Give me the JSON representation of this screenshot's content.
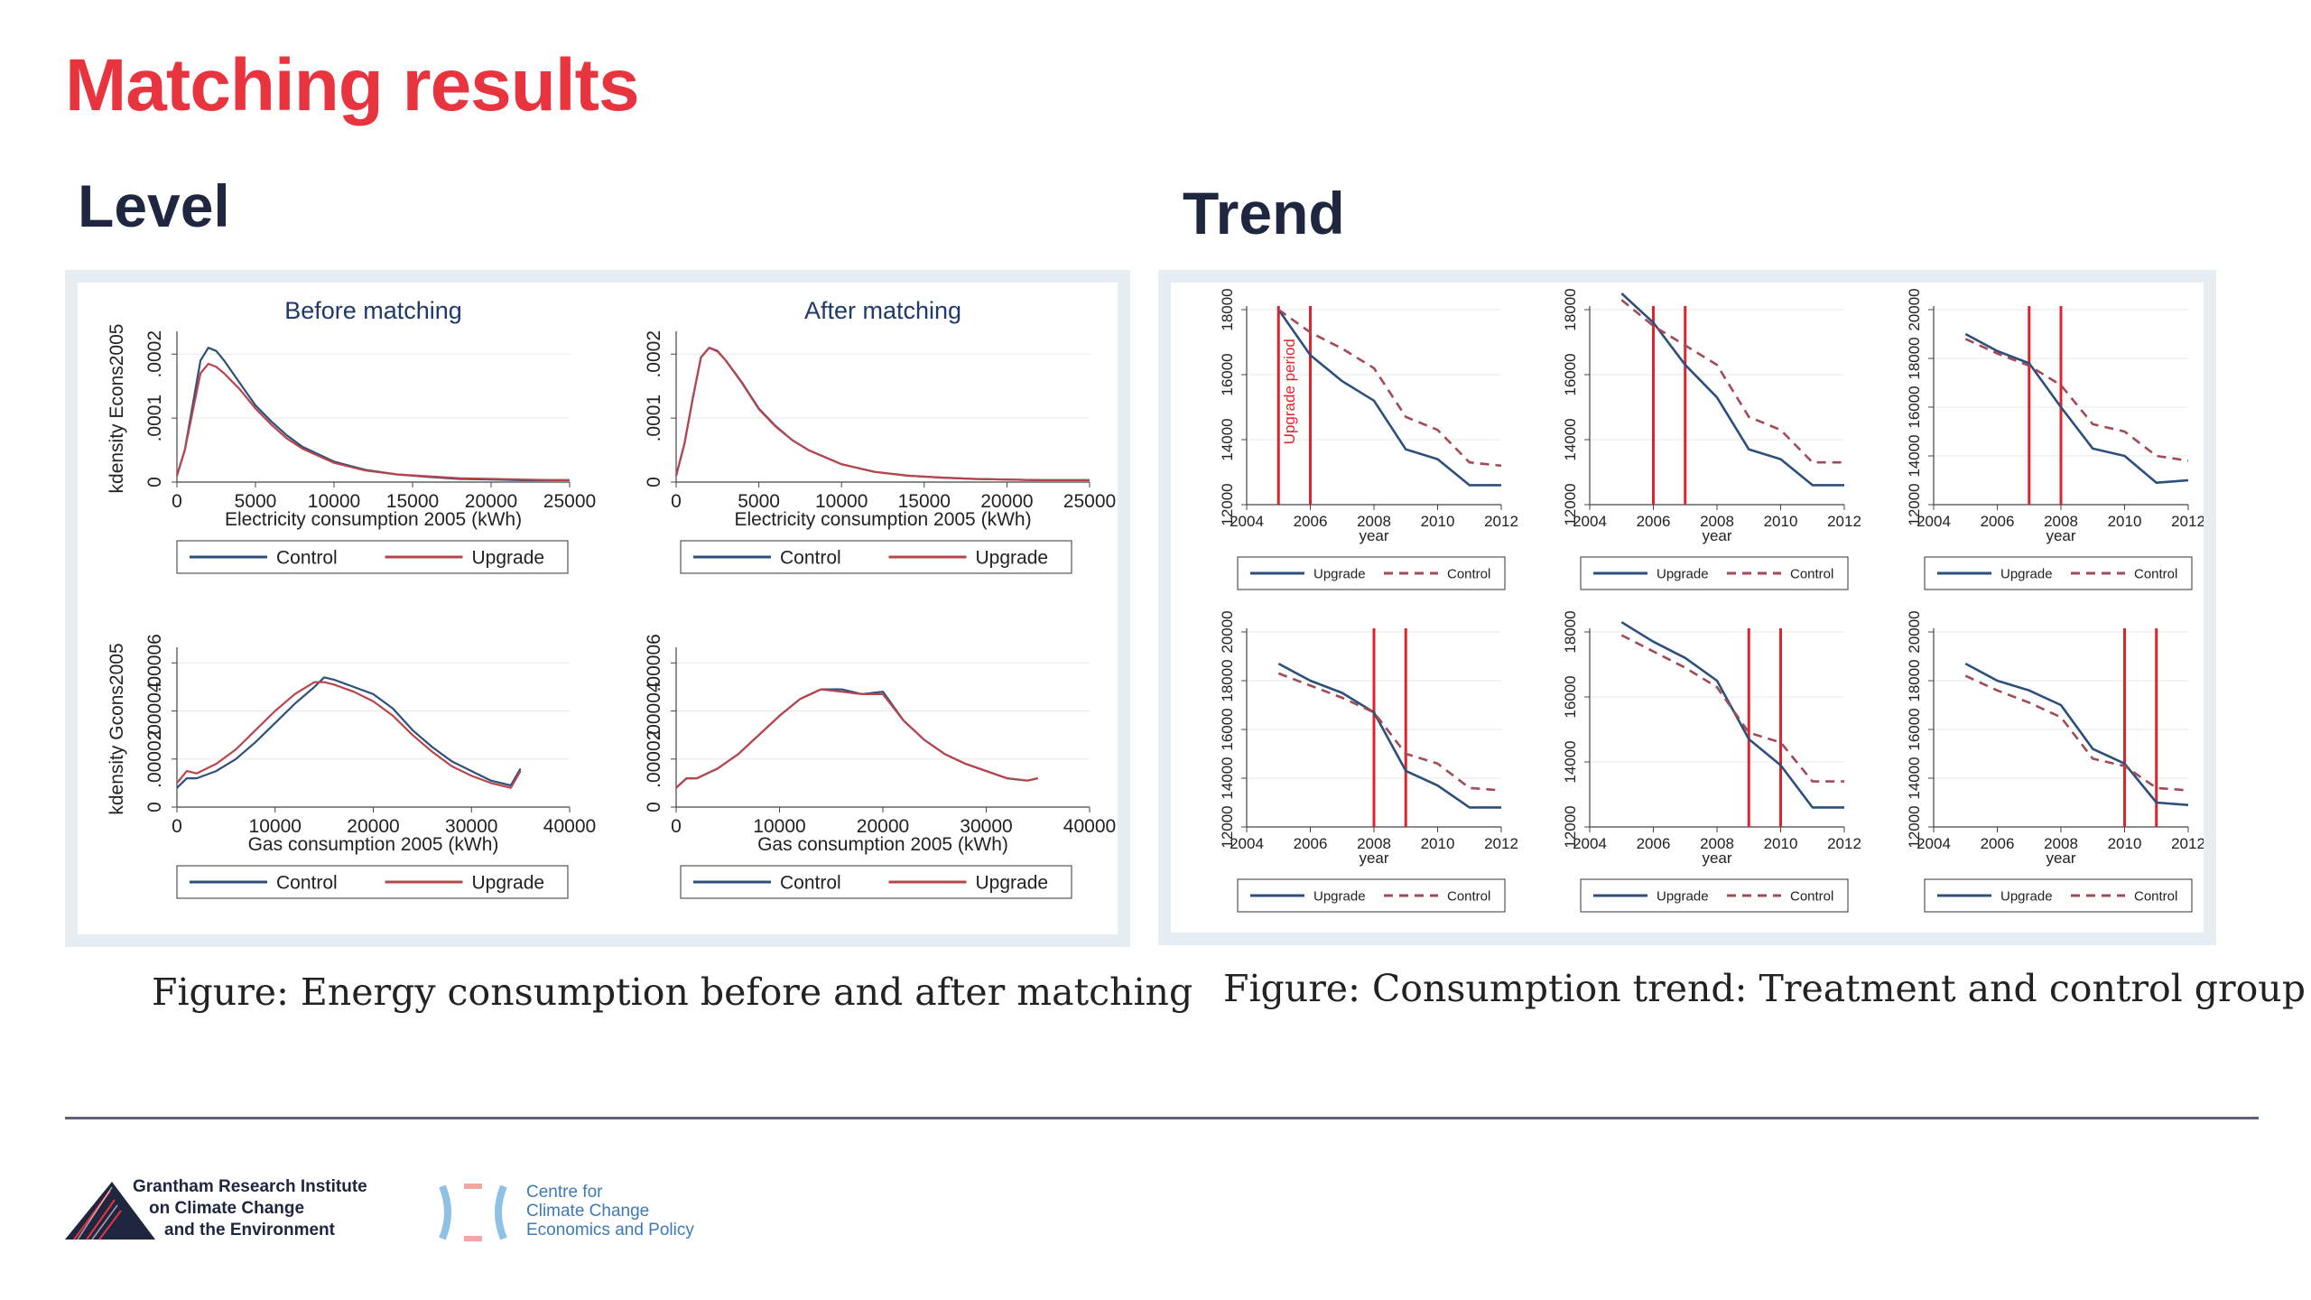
{
  "slide": {
    "title": "Matching results",
    "level_heading": "Level",
    "trend_heading": "Trend",
    "level_caption": "Figure: Energy consumption before and after matching",
    "trend_caption": "Figure: Consumption trend: Treatment and control group"
  },
  "logos": {
    "grantham": [
      "Grantham Research Institute",
      "on Climate Change",
      "and the Environment"
    ],
    "cccep": [
      "Centre for",
      "Climate Change",
      "Economics and Policy"
    ]
  },
  "colors": {
    "title_red": "#e8343f",
    "upgrade_line": "#b8454c",
    "control_line": "#2c4f7c",
    "upgrade_period_line": "#e0232b",
    "trend_control_dash": "#a24a55"
  },
  "chart_data": [
    {
      "id": "level_elec_before",
      "type": "line",
      "title": "Before matching",
      "xlabel": "Electricity consumption 2005 (kWh)",
      "ylabel": "kdensity Econs2005",
      "xticks": [
        "0",
        "5000",
        "10000",
        "15000",
        "20000",
        "25000"
      ],
      "yticks": [
        "0",
        ".0001",
        ".0002"
      ],
      "xlim": [
        0,
        25000
      ],
      "ylim": [
        0,
        0.00023
      ],
      "legend": [
        "Control",
        "Upgrade"
      ],
      "series": [
        {
          "name": "Control",
          "x": [
            0,
            500,
            1000,
            1500,
            2000,
            2500,
            3000,
            4000,
            5000,
            6000,
            7000,
            8000,
            10000,
            12000,
            14000,
            16000,
            18000,
            20000,
            22000,
            24000,
            25000
          ],
          "y": [
            1e-05,
            5e-05,
            0.00012,
            0.00019,
            0.00021,
            0.000205,
            0.00019,
            0.000155,
            0.00012,
            9.5e-05,
            7.3e-05,
            5.5e-05,
            3.2e-05,
            1.9e-05,
            1.2e-05,
            8e-06,
            5e-06,
            4e-06,
            3e-06,
            3e-06,
            3e-06
          ]
        },
        {
          "name": "Upgrade",
          "x": [
            0,
            500,
            1000,
            1500,
            2000,
            2500,
            3000,
            4000,
            5000,
            6000,
            7000,
            8000,
            10000,
            12000,
            14000,
            16000,
            18000,
            20000,
            22000,
            24000,
            25000
          ],
          "y": [
            1e-05,
            5e-05,
            0.00011,
            0.00017,
            0.000185,
            0.00018,
            0.00017,
            0.000145,
            0.000115,
            9e-05,
            6.8e-05,
            5.2e-05,
            3e-05,
            1.8e-05,
            1.2e-05,
            9e-06,
            6e-06,
            5e-06,
            4e-06,
            3e-06,
            3e-06
          ]
        }
      ]
    },
    {
      "id": "level_elec_after",
      "type": "line",
      "title": "After matching",
      "xlabel": "Electricity consumption 2005 (kWh)",
      "ylabel": "",
      "xticks": [
        "0",
        "5000",
        "10000",
        "15000",
        "20000",
        "25000"
      ],
      "yticks": [
        "0",
        ".0001",
        ".0002"
      ],
      "xlim": [
        0,
        25000
      ],
      "ylim": [
        0,
        0.00023
      ],
      "legend": [
        "Control",
        "Upgrade"
      ],
      "series": [
        {
          "name": "Control",
          "x": [
            0,
            500,
            1000,
            1500,
            2000,
            2500,
            3000,
            4000,
            5000,
            6000,
            7000,
            8000,
            10000,
            12000,
            14000,
            16000,
            18000,
            20000,
            22000,
            24000,
            25000
          ],
          "y": [
            1e-05,
            6e-05,
            0.00013,
            0.000195,
            0.00021,
            0.000205,
            0.00019,
            0.000155,
            0.000115,
            8.8e-05,
            6.6e-05,
            5e-05,
            2.8e-05,
            1.6e-05,
            1e-05,
            7e-06,
            5e-06,
            4e-06,
            3e-06,
            3e-06,
            3e-06
          ]
        },
        {
          "name": "Upgrade",
          "x": [
            0,
            500,
            1000,
            1500,
            2000,
            2500,
            3000,
            4000,
            5000,
            6000,
            7000,
            8000,
            10000,
            12000,
            14000,
            16000,
            18000,
            20000,
            22000,
            24000,
            25000
          ],
          "y": [
            1e-05,
            6e-05,
            0.00013,
            0.000195,
            0.00021,
            0.000204,
            0.00019,
            0.000154,
            0.000114,
            8.7e-05,
            6.6e-05,
            5e-05,
            2.8e-05,
            1.6e-05,
            1e-05,
            7e-06,
            5e-06,
            4e-06,
            3e-06,
            3e-06,
            3e-06
          ]
        }
      ]
    },
    {
      "id": "level_gas_before",
      "type": "line",
      "title": "",
      "xlabel": "Gas consumption 2005 (kWh)",
      "ylabel": "kdensity Gcons2005",
      "xticks": [
        "0",
        "10000",
        "20000",
        "30000",
        "40000"
      ],
      "yticks": [
        "0",
        ".00002",
        ".00004",
        ".00006"
      ],
      "xlim": [
        0,
        40000
      ],
      "ylim": [
        0,
        6.5e-05
      ],
      "legend": [
        "Control",
        "Upgrade"
      ],
      "series": [
        {
          "name": "Control",
          "x": [
            0,
            1000,
            2000,
            4000,
            6000,
            8000,
            10000,
            12000,
            14000,
            15000,
            16000,
            18000,
            20000,
            22000,
            24000,
            26000,
            28000,
            30000,
            32000,
            34000,
            35000
          ],
          "y": [
            8e-06,
            1.2e-05,
            1.2e-05,
            1.5e-05,
            2e-05,
            2.7e-05,
            3.5e-05,
            4.3e-05,
            5e-05,
            5.4e-05,
            5.3e-05,
            5e-05,
            4.7e-05,
            4.1e-05,
            3.2e-05,
            2.5e-05,
            1.9e-05,
            1.5e-05,
            1.1e-05,
            9e-06,
            1.6e-05
          ]
        },
        {
          "name": "Upgrade",
          "x": [
            0,
            1000,
            2000,
            4000,
            6000,
            8000,
            10000,
            12000,
            14000,
            15000,
            16000,
            18000,
            20000,
            22000,
            24000,
            26000,
            28000,
            30000,
            32000,
            34000,
            35000
          ],
          "y": [
            1e-05,
            1.5e-05,
            1.4e-05,
            1.8e-05,
            2.4e-05,
            3.2e-05,
            4e-05,
            4.7e-05,
            5.2e-05,
            5.2e-05,
            5.1e-05,
            4.8e-05,
            4.4e-05,
            3.8e-05,
            3e-05,
            2.3e-05,
            1.7e-05,
            1.3e-05,
            1e-05,
            8e-06,
            1.5e-05
          ]
        }
      ]
    },
    {
      "id": "level_gas_after",
      "type": "line",
      "title": "",
      "xlabel": "Gas consumption 2005 (kWh)",
      "ylabel": "",
      "xticks": [
        "0",
        "10000",
        "20000",
        "30000",
        "40000"
      ],
      "yticks": [
        "0",
        ".00002",
        ".00004",
        ".00006"
      ],
      "xlim": [
        0,
        40000
      ],
      "ylim": [
        0,
        6.5e-05
      ],
      "legend": [
        "Control",
        "Upgrade"
      ],
      "series": [
        {
          "name": "Control",
          "x": [
            0,
            1000,
            2000,
            4000,
            6000,
            8000,
            10000,
            12000,
            14000,
            16000,
            18000,
            20000,
            22000,
            24000,
            26000,
            28000,
            30000,
            32000,
            34000,
            35000
          ],
          "y": [
            8e-06,
            1.2e-05,
            1.2e-05,
            1.6e-05,
            2.2e-05,
            3e-05,
            3.8e-05,
            4.5e-05,
            4.9e-05,
            4.9e-05,
            4.7e-05,
            4.8e-05,
            3.6e-05,
            2.8e-05,
            2.2e-05,
            1.8e-05,
            1.5e-05,
            1.2e-05,
            1.1e-05,
            1.2e-05
          ]
        },
        {
          "name": "Upgrade",
          "x": [
            0,
            1000,
            2000,
            4000,
            6000,
            8000,
            10000,
            12000,
            14000,
            16000,
            18000,
            20000,
            22000,
            24000,
            26000,
            28000,
            30000,
            32000,
            34000,
            35000
          ],
          "y": [
            8e-06,
            1.2e-05,
            1.2e-05,
            1.6e-05,
            2.2e-05,
            3e-05,
            3.8e-05,
            4.5e-05,
            4.9e-05,
            4.8e-05,
            4.7e-05,
            4.7e-05,
            3.6e-05,
            2.8e-05,
            2.2e-05,
            1.8e-05,
            1.5e-05,
            1.2e-05,
            1.1e-05,
            1.2e-05
          ]
        }
      ]
    },
    {
      "id": "trend_1",
      "type": "line",
      "xlabel": "year",
      "xticks": [
        "2004",
        "2006",
        "2008",
        "2010",
        "2012"
      ],
      "xlim": [
        2004,
        2012
      ],
      "yticks": [
        "12000",
        "14000",
        "16000",
        "18000"
      ],
      "ylim": [
        12000,
        18000
      ],
      "legend": [
        "Upgrade",
        "Control"
      ],
      "upgrade_period": [
        2005,
        2006
      ],
      "annotation": "Upgrade period",
      "series": [
        {
          "name": "Upgrade",
          "x": [
            2005,
            2006,
            2007,
            2008,
            2009,
            2010,
            2011,
            2012
          ],
          "y": [
            18000,
            16600,
            15800,
            15200,
            13700,
            13400,
            12600,
            12600
          ]
        },
        {
          "name": "Control",
          "x": [
            2005,
            2006,
            2007,
            2008,
            2009,
            2010,
            2011,
            2012
          ],
          "y": [
            18000,
            17300,
            16800,
            16200,
            14700,
            14300,
            13300,
            13200
          ]
        }
      ]
    },
    {
      "id": "trend_2",
      "type": "line",
      "xlabel": "year",
      "xticks": [
        "2004",
        "2006",
        "2008",
        "2010",
        "2012"
      ],
      "xlim": [
        2004,
        2012
      ],
      "yticks": [
        "12000",
        "14000",
        "16000",
        "18000"
      ],
      "ylim": [
        12000,
        18000
      ],
      "legend": [
        "Upgrade",
        "Control"
      ],
      "upgrade_period": [
        2006,
        2007
      ],
      "series": [
        {
          "name": "Upgrade",
          "x": [
            2005,
            2006,
            2007,
            2008,
            2009,
            2010,
            2011,
            2012
          ],
          "y": [
            18500,
            17600,
            16300,
            15300,
            13700,
            13400,
            12600,
            12600
          ]
        },
        {
          "name": "Control",
          "x": [
            2005,
            2006,
            2007,
            2008,
            2009,
            2010,
            2011,
            2012
          ],
          "y": [
            18300,
            17500,
            16900,
            16300,
            14700,
            14300,
            13300,
            13300
          ]
        }
      ]
    },
    {
      "id": "trend_3",
      "type": "line",
      "xlabel": "year",
      "xticks": [
        "2004",
        "2006",
        "2008",
        "2010",
        "2012"
      ],
      "xlim": [
        2004,
        2012
      ],
      "yticks": [
        "12000",
        "14000",
        "16000",
        "18000",
        "20000"
      ],
      "ylim": [
        12000,
        20000
      ],
      "legend": [
        "Upgrade",
        "Control"
      ],
      "upgrade_period": [
        2007,
        2008
      ],
      "series": [
        {
          "name": "Upgrade",
          "x": [
            2005,
            2006,
            2007,
            2008,
            2009,
            2010,
            2011,
            2012
          ],
          "y": [
            19000,
            18300,
            17800,
            16000,
            14300,
            14000,
            12900,
            13000
          ]
        },
        {
          "name": "Control",
          "x": [
            2005,
            2006,
            2007,
            2008,
            2009,
            2010,
            2011,
            2012
          ],
          "y": [
            18800,
            18200,
            17700,
            16900,
            15300,
            15000,
            14000,
            13800
          ]
        }
      ]
    },
    {
      "id": "trend_4",
      "type": "line",
      "xlabel": "year",
      "xticks": [
        "2004",
        "2006",
        "2008",
        "2010",
        "2012"
      ],
      "xlim": [
        2004,
        2012
      ],
      "yticks": [
        "12000",
        "14000",
        "16000",
        "18000",
        "20000"
      ],
      "ylim": [
        12000,
        20000
      ],
      "legend": [
        "Upgrade",
        "Control"
      ],
      "upgrade_period": [
        2008,
        2009
      ],
      "series": [
        {
          "name": "Upgrade",
          "x": [
            2005,
            2006,
            2007,
            2008,
            2009,
            2010,
            2011,
            2012
          ],
          "y": [
            18700,
            18000,
            17500,
            16700,
            14300,
            13700,
            12800,
            12800
          ]
        },
        {
          "name": "Control",
          "x": [
            2005,
            2006,
            2007,
            2008,
            2009,
            2010,
            2011,
            2012
          ],
          "y": [
            18300,
            17800,
            17300,
            16700,
            15000,
            14600,
            13600,
            13500
          ]
        }
      ]
    },
    {
      "id": "trend_5",
      "type": "line",
      "xlabel": "year",
      "xticks": [
        "2004",
        "2006",
        "2008",
        "2010",
        "2012"
      ],
      "xlim": [
        2004,
        2012
      ],
      "yticks": [
        "12000",
        "14000",
        "16000",
        "18000"
      ],
      "ylim": [
        12000,
        18000
      ],
      "legend": [
        "Upgrade",
        "Control"
      ],
      "upgrade_period": [
        2009,
        2010
      ],
      "series": [
        {
          "name": "Upgrade",
          "x": [
            2005,
            2006,
            2007,
            2008,
            2009,
            2010,
            2011,
            2012
          ],
          "y": [
            18300,
            17700,
            17200,
            16500,
            14700,
            13900,
            12600,
            12600
          ]
        },
        {
          "name": "Control",
          "x": [
            2005,
            2006,
            2007,
            2008,
            2009,
            2010,
            2011,
            2012
          ],
          "y": [
            17900,
            17400,
            16900,
            16300,
            14900,
            14600,
            13400,
            13400
          ]
        }
      ]
    },
    {
      "id": "trend_6",
      "type": "line",
      "xlabel": "year",
      "xticks": [
        "2004",
        "2006",
        "2008",
        "2010",
        "2012"
      ],
      "xlim": [
        2004,
        2012
      ],
      "yticks": [
        "12000",
        "14000",
        "16000",
        "18000",
        "20000"
      ],
      "ylim": [
        12000,
        20000
      ],
      "legend": [
        "Upgrade",
        "Control"
      ],
      "upgrade_period": [
        2010,
        2011
      ],
      "series": [
        {
          "name": "Upgrade",
          "x": [
            2005,
            2006,
            2007,
            2008,
            2009,
            2010,
            2011,
            2012
          ],
          "y": [
            18700,
            18000,
            17600,
            17000,
            15200,
            14600,
            13000,
            12900
          ]
        },
        {
          "name": "Control",
          "x": [
            2005,
            2006,
            2007,
            2008,
            2009,
            2010,
            2011,
            2012
          ],
          "y": [
            18200,
            17600,
            17100,
            16500,
            14800,
            14500,
            13600,
            13500
          ]
        }
      ]
    }
  ]
}
